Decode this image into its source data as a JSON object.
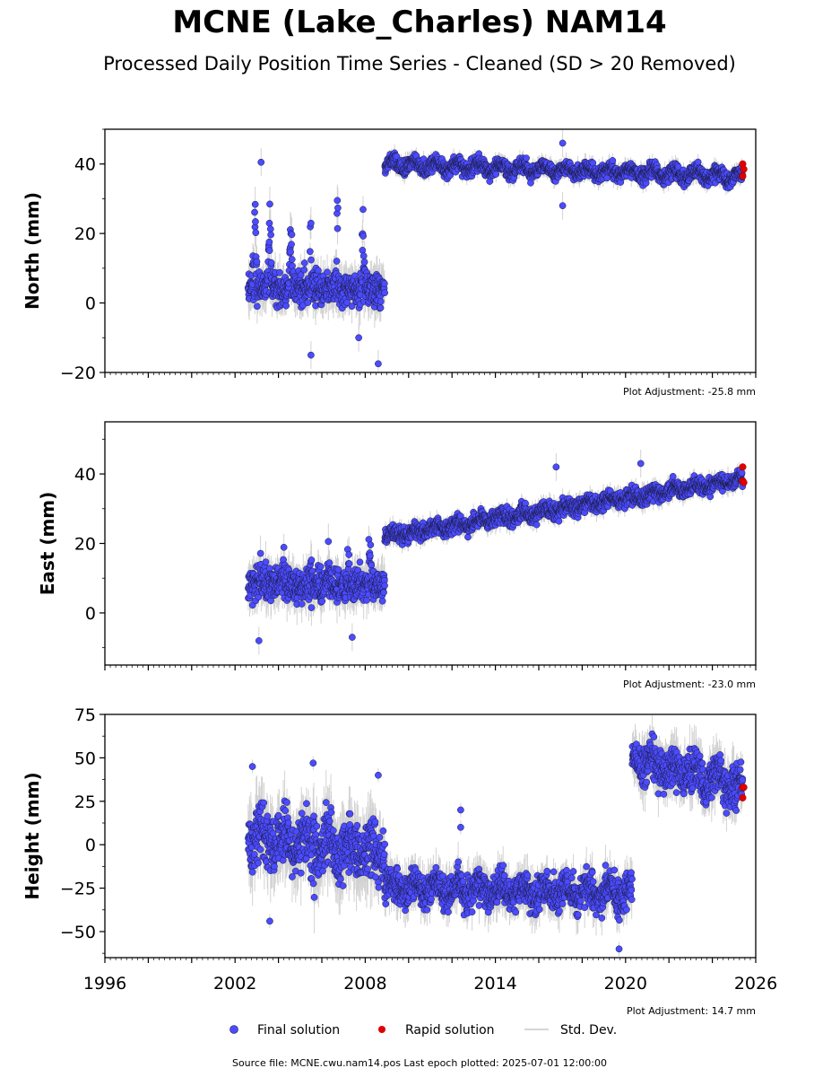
{
  "title": "MCNE (Lake_Charles) NAM14",
  "subtitle": "Processed Daily Position Time Series - Cleaned (SD > 20 Removed)",
  "source_note": "Source file: MCNE.cwu.nam14.pos  Last epoch plotted: 2025-07-01 12:00:00",
  "legend": {
    "final": "Final solution",
    "rapid": "Rapid solution",
    "std": "Std. Dev."
  },
  "colors": {
    "final": "#4b4bff",
    "final_edge": "#1a1a40",
    "rapid": "#e00000",
    "std": "#c8c8c8"
  },
  "chart_data": [
    {
      "type": "scatter",
      "ylabel": "North (mm)",
      "note": "Plot Adjustment: -25.8 mm",
      "xlim": [
        1996,
        2026
      ],
      "ylim": [
        -20,
        50
      ],
      "yticks": [
        -20,
        0,
        20,
        40
      ],
      "ytick_labels": [
        "−20",
        "0",
        "20",
        "40"
      ],
      "segments": [
        {
          "x0": 2002.6,
          "x1": 2008.9,
          "mean": 4,
          "spread": 3.5,
          "period": 1,
          "amp": 0,
          "spikes": [
            {
              "x": 2002.9,
              "h": 33
            },
            {
              "x": 2003.6,
              "h": 28
            },
            {
              "x": 2004.6,
              "h": 32
            },
            {
              "x": 2005.5,
              "h": 24
            },
            {
              "x": 2006.7,
              "h": 37
            },
            {
              "x": 2007.9,
              "h": 30
            }
          ]
        },
        {
          "x0": 2008.9,
          "x1": 2025.4,
          "mean": 40,
          "end": 36.5,
          "spread": 1.5,
          "period": 1,
          "amp": 1.2
        }
      ],
      "outliers": [
        [
          2003.2,
          40.5
        ],
        [
          2005.5,
          -15
        ],
        [
          2007.7,
          -10
        ],
        [
          2008.6,
          -17.5
        ],
        [
          2017.1,
          46
        ],
        [
          2017.1,
          28
        ]
      ],
      "rapid": [
        [
          2025.4,
          40
        ],
        [
          2025.4,
          36.5
        ],
        [
          2025.45,
          38.5
        ]
      ]
    },
    {
      "type": "scatter",
      "ylabel": "East (mm)",
      "note": "Plot Adjustment: -23.0 mm",
      "xlim": [
        1996,
        2026
      ],
      "ylim": [
        -15,
        55
      ],
      "yticks": [
        0,
        20,
        40
      ],
      "ytick_labels": [
        "0",
        "20",
        "40"
      ],
      "segments": [
        {
          "x0": 2002.6,
          "x1": 2008.9,
          "mean": 8,
          "spread": 3.5,
          "period": 1,
          "amp": 0,
          "spikes": [
            {
              "x": 2003.2,
              "h": 14
            },
            {
              "x": 2004.2,
              "h": 13
            },
            {
              "x": 2005.5,
              "h": 13
            },
            {
              "x": 2006.3,
              "h": 12
            },
            {
              "x": 2007.2,
              "h": 14
            },
            {
              "x": 2008.2,
              "h": 14
            }
          ]
        },
        {
          "x0": 2008.9,
          "x1": 2025.4,
          "mean": 22,
          "end": 38.5,
          "spread": 1.6,
          "period": 1,
          "amp": 0.8
        }
      ],
      "outliers": [
        [
          2003.1,
          -8
        ],
        [
          2007.4,
          -7
        ],
        [
          2016.8,
          42
        ],
        [
          2020.7,
          43
        ]
      ],
      "rapid": [
        [
          2025.4,
          42
        ],
        [
          2025.4,
          38
        ],
        [
          2025.45,
          37.5
        ]
      ]
    },
    {
      "type": "scatter",
      "ylabel": "Height (mm)",
      "note": "Plot Adjustment: 14.7 mm",
      "xlim": [
        1996,
        2026
      ],
      "ylim": [
        -65,
        75
      ],
      "yticks": [
        -50,
        -25,
        0,
        25,
        50,
        75
      ],
      "ytick_labels": [
        "−50",
        "−25",
        "0",
        "25",
        "50",
        "75"
      ],
      "xticks": [
        1996,
        2002,
        2008,
        2014,
        2020,
        2026
      ],
      "segments": [
        {
          "x0": 2002.6,
          "x1": 2008.9,
          "mean": 5,
          "end": -5,
          "spread": 12,
          "period": 1,
          "amp": 6
        },
        {
          "x0": 2008.9,
          "x1": 2020.3,
          "mean": -25,
          "end": -28,
          "spread": 7,
          "period": 1,
          "amp": 4
        },
        {
          "x0": 2020.3,
          "x1": 2025.4,
          "mean": 50,
          "end": 33,
          "spread": 8,
          "period": 1,
          "amp": 4
        }
      ],
      "outliers": [
        [
          2002.8,
          45
        ],
        [
          2003.6,
          -44
        ],
        [
          2005.6,
          47
        ],
        [
          2008.6,
          40
        ],
        [
          2012.4,
          20
        ],
        [
          2012.4,
          10
        ],
        [
          2019.7,
          -60
        ]
      ],
      "rapid": [
        [
          2025.4,
          33
        ],
        [
          2025.4,
          27
        ],
        [
          2025.45,
          33
        ]
      ]
    }
  ]
}
